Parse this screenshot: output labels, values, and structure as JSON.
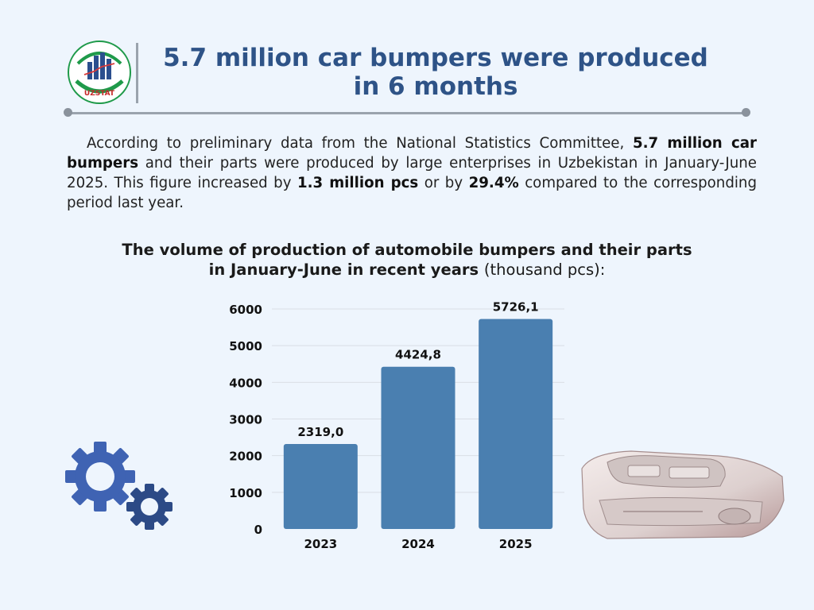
{
  "header": {
    "logo_text": "UZSTAT",
    "title_line1": "5.7 million car bumpers were produced",
    "title_line2": "in 6 months"
  },
  "body": {
    "p1": "According to preliminary data from the National Statistics Committee, ",
    "b1": "5.7 million car bumpers",
    "p2": " and their parts were produced by large enterprises in Uzbekistan in January-June 2025. This figure increased by ",
    "b2": "1.3 million pcs",
    "p3": " or by ",
    "b3": "29.4%",
    "p4": " compared to the corresponding period last year."
  },
  "chart_data": {
    "type": "bar",
    "title": "The volume of production of automobile bumpers and their parts in January-June in recent years",
    "title_unit": "(thousand pcs):",
    "categories": [
      "2023",
      "2024",
      "2025"
    ],
    "values": [
      2319.0,
      4424.8,
      5726.1
    ],
    "value_labels": [
      "2319,0",
      "4424,8",
      "5726,1"
    ],
    "yticks": [
      0,
      1000,
      2000,
      3000,
      4000,
      5000,
      6000
    ],
    "ylim": [
      0,
      6000
    ],
    "bar_color": "#4a7fb0",
    "grid": true
  },
  "colors": {
    "background": "#eef5fd",
    "title": "#2e5387",
    "gear": "#3f63b3"
  },
  "decorations": {
    "left": "gears-icon",
    "right": "car-bumper-image"
  }
}
